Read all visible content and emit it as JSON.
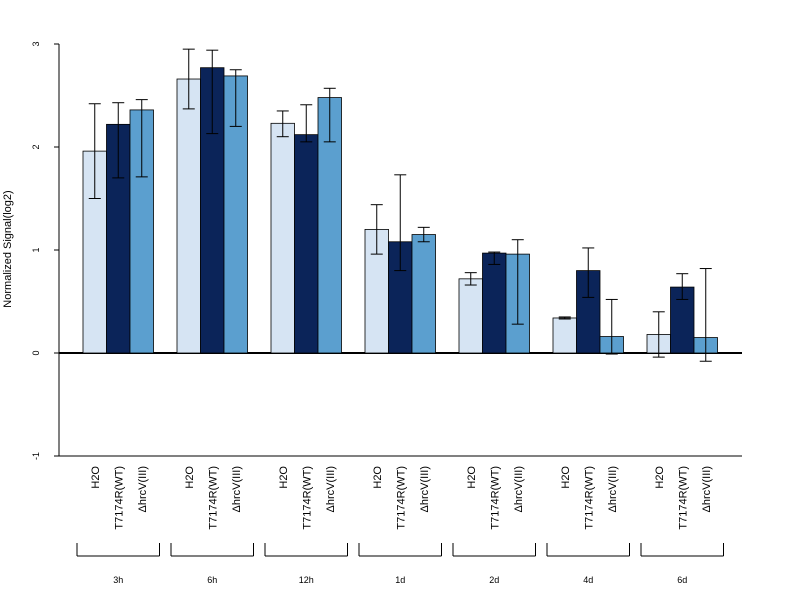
{
  "chart_data": {
    "type": "bar",
    "ylabel": "Normalized Signal(log2)",
    "ylim": [
      -1,
      3
    ],
    "yticks": [
      -1,
      0,
      1,
      2,
      3
    ],
    "groups": [
      "3h",
      "6h",
      "12h",
      "1d",
      "2d",
      "4d",
      "6d"
    ],
    "bar_labels": [
      "H2O",
      "T7174R(WT)",
      "ΔhrcV(III)"
    ],
    "series": [
      {
        "name": "H2O",
        "color": "#D6E4F3",
        "values": [
          1.96,
          2.66,
          2.23,
          1.2,
          0.72,
          0.34,
          0.18
        ],
        "err_low": [
          1.5,
          2.37,
          2.1,
          0.96,
          0.66,
          0.33,
          -0.04
        ],
        "err_high": [
          2.42,
          2.95,
          2.35,
          1.44,
          0.78,
          0.35,
          0.4
        ]
      },
      {
        "name": "T7174R(WT)",
        "color": "#0B2459",
        "values": [
          2.22,
          2.77,
          2.12,
          1.08,
          0.97,
          0.8,
          0.64
        ],
        "err_low": [
          1.7,
          2.13,
          2.05,
          0.8,
          0.86,
          0.54,
          0.52
        ],
        "err_high": [
          2.43,
          2.94,
          2.41,
          1.73,
          0.98,
          1.02,
          0.77
        ]
      },
      {
        "name": "ΔhrcV(III)",
        "color": "#5B9FCF",
        "values": [
          2.36,
          2.69,
          2.48,
          1.15,
          0.96,
          0.16,
          0.15
        ],
        "err_low": [
          1.71,
          2.2,
          2.05,
          1.08,
          0.28,
          -0.01,
          -0.08
        ],
        "err_high": [
          2.46,
          2.75,
          2.57,
          1.22,
          1.1,
          0.52,
          0.82
        ]
      }
    ],
    "baseline": 0
  }
}
